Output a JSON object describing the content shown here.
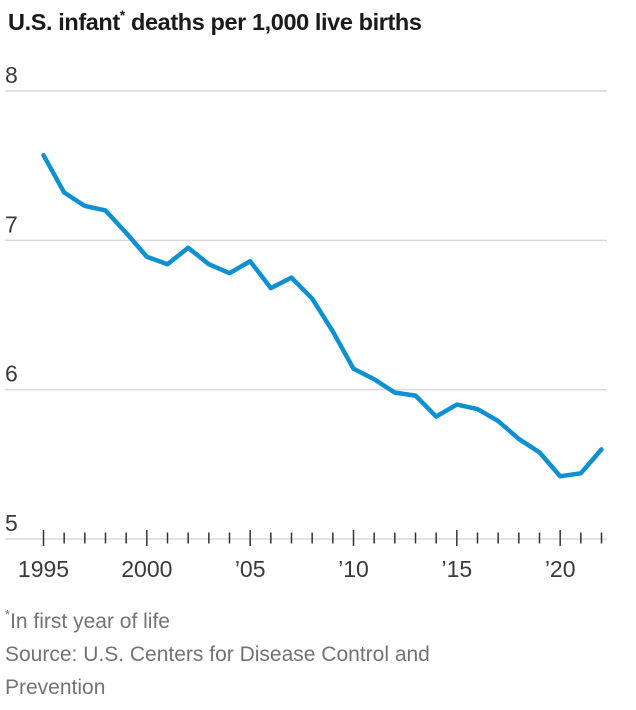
{
  "title": {
    "before_asterisk": "U.S. infant",
    "asterisk": "*",
    "after_asterisk": " deaths per 1,000 live births"
  },
  "chart_data": {
    "type": "line",
    "title": "U.S. infant* deaths per 1,000 live births",
    "xlabel": "",
    "ylabel": "deaths per 1,000 live births",
    "x": [
      1995,
      1996,
      1997,
      1998,
      1999,
      2000,
      2001,
      2002,
      2003,
      2004,
      2005,
      2006,
      2007,
      2008,
      2009,
      2010,
      2011,
      2012,
      2013,
      2014,
      2015,
      2016,
      2017,
      2018,
      2019,
      2020,
      2021,
      2022
    ],
    "values": [
      7.57,
      7.32,
      7.23,
      7.2,
      7.05,
      6.89,
      6.84,
      6.95,
      6.84,
      6.78,
      6.86,
      6.68,
      6.75,
      6.61,
      6.39,
      6.14,
      6.07,
      5.98,
      5.96,
      5.82,
      5.9,
      5.87,
      5.79,
      5.67,
      5.58,
      5.42,
      5.44,
      5.6
    ],
    "ylim": [
      5,
      8
    ],
    "yticks": [
      8,
      7,
      6,
      5
    ],
    "x_tick_labels": [
      {
        "year": 1995,
        "label": "1995"
      },
      {
        "year": 2000,
        "label": "2000"
      },
      {
        "year": 2005,
        "label": "’05"
      },
      {
        "year": 2010,
        "label": "’10"
      },
      {
        "year": 2015,
        "label": "’15"
      },
      {
        "year": 2020,
        "label": "’20"
      }
    ],
    "minor_ticks": "every year 1995-2022",
    "grid": "horizontal",
    "legend": "none",
    "colors": {
      "line": "#0f90d1",
      "grid": "#d9d9d9",
      "tick": "#333333",
      "axis_labels": "#3a3a3a",
      "title": "#1a1a1a",
      "notes": "#737373"
    }
  },
  "notes": {
    "footnote_marker": "*",
    "footnote_text": "In first year of life",
    "source": "Source: U.S. Centers for Disease Control and Prevention"
  }
}
